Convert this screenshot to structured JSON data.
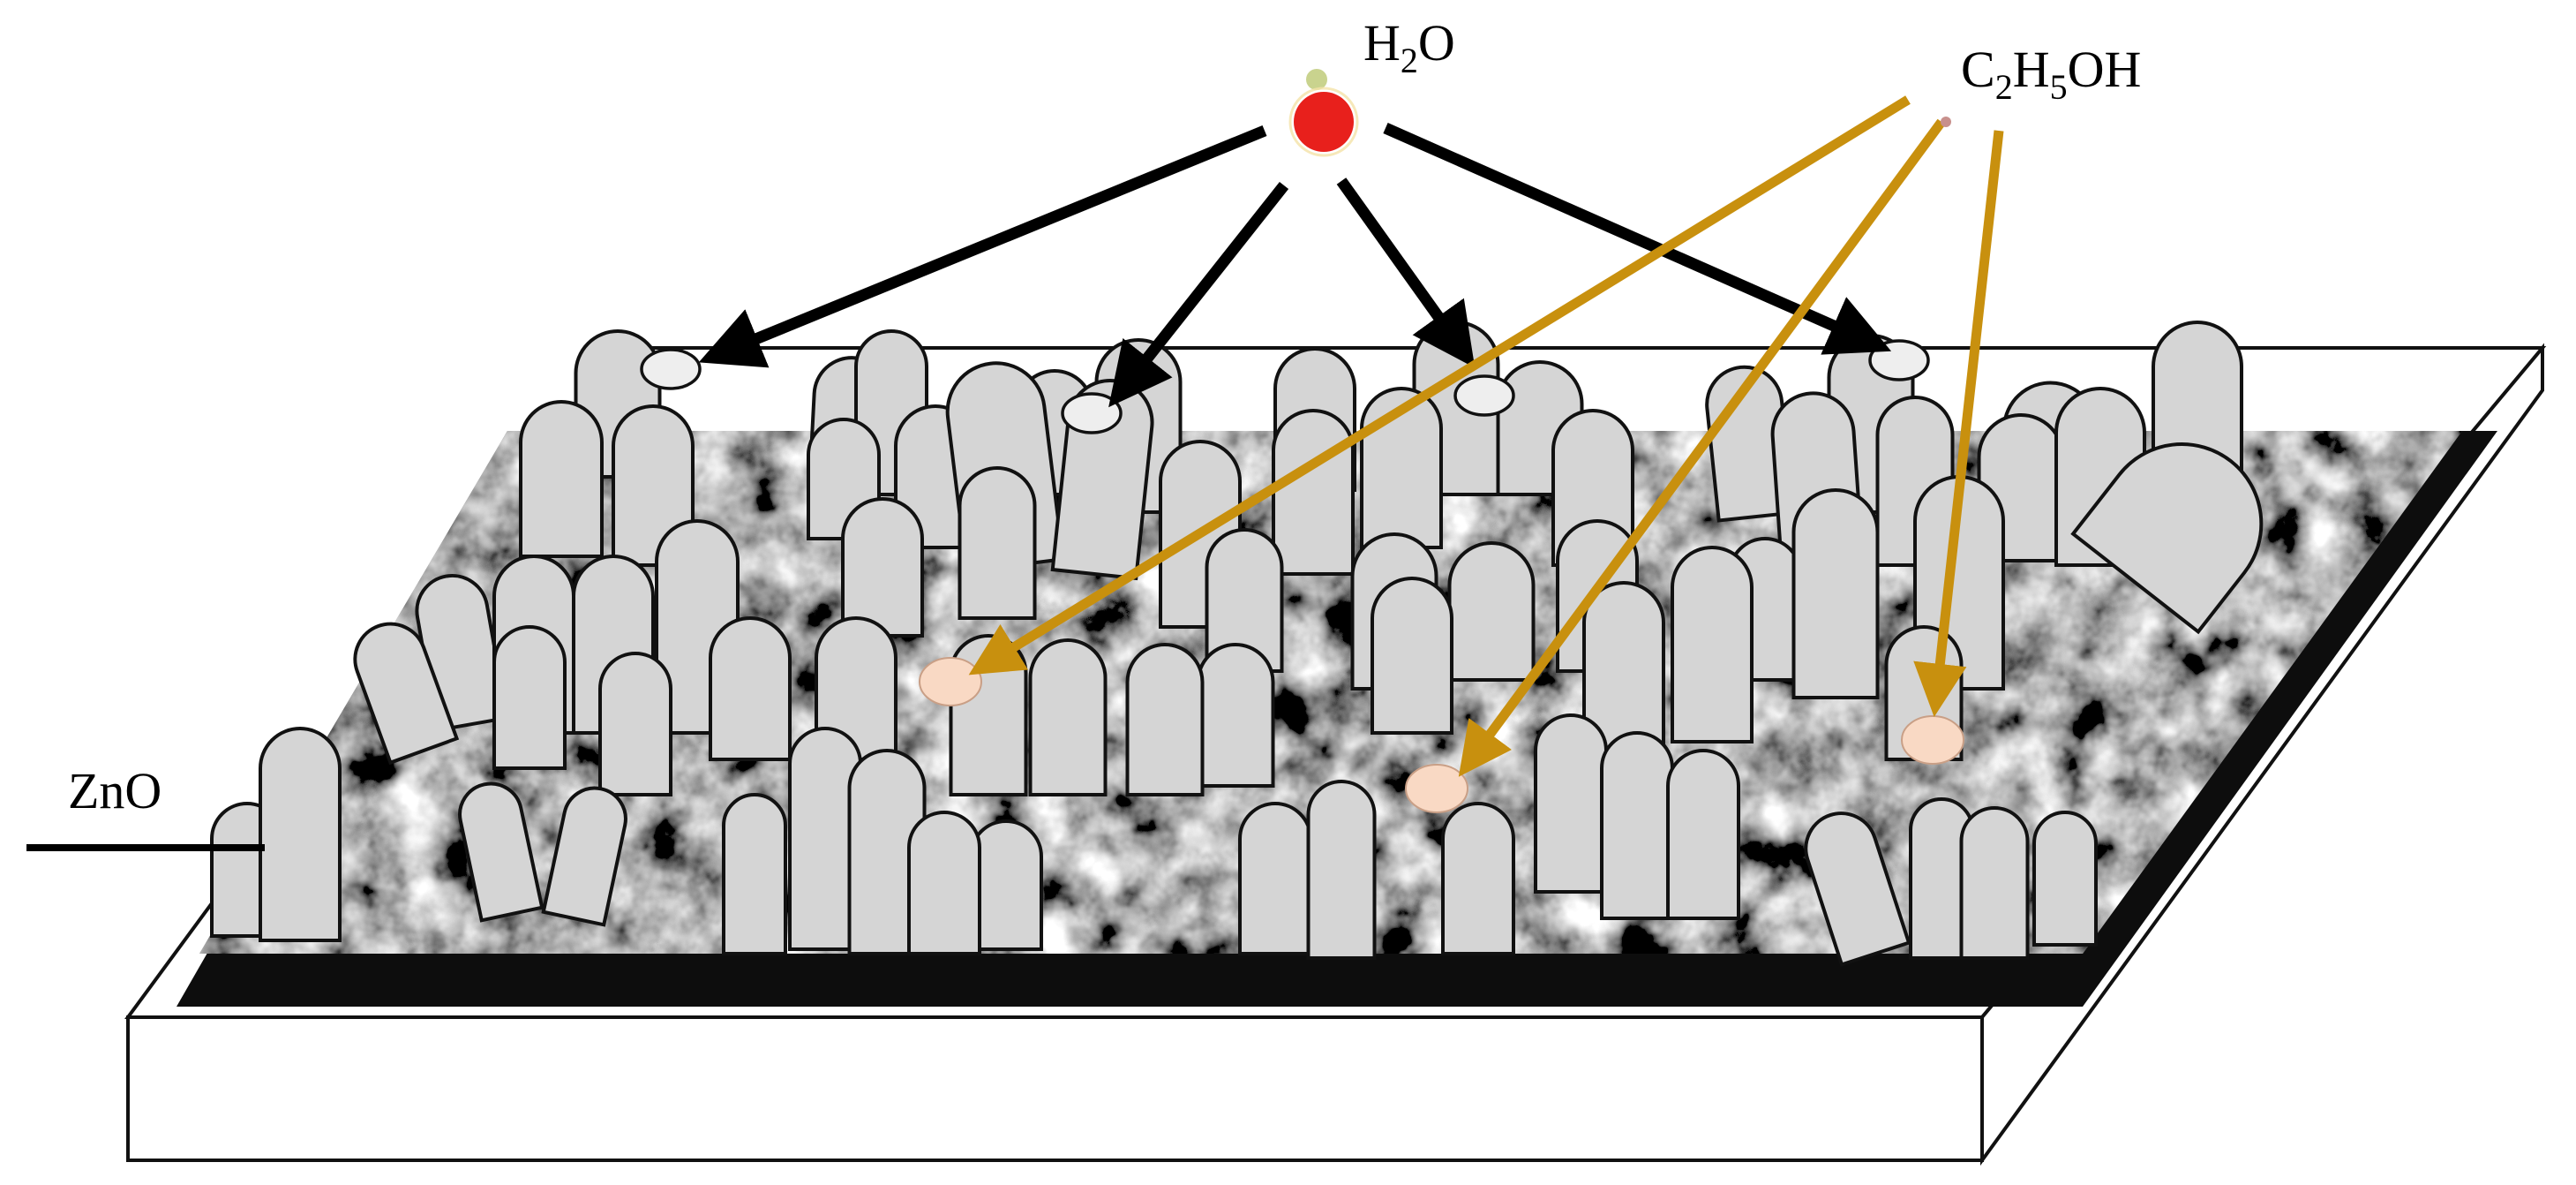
{
  "labels": {
    "water": {
      "prefix": "H",
      "sub": "2",
      "suffix": "O"
    },
    "ethanol": {
      "p1": "C",
      "s1": "2",
      "p2": "H",
      "s2": "5",
      "p3": "OH"
    },
    "material": "ZnO"
  },
  "colors": {
    "water_molecule": "#e8201c",
    "ethanol_molecule": "#f9d9c4",
    "water_arrow": "#000000",
    "ethanol_arrow": "#c8900e",
    "rod_fill": "#d5d5d5"
  },
  "icons": [
    "water-molecule-icon",
    "ethanol-molecule-icon",
    "arrow-icon"
  ]
}
